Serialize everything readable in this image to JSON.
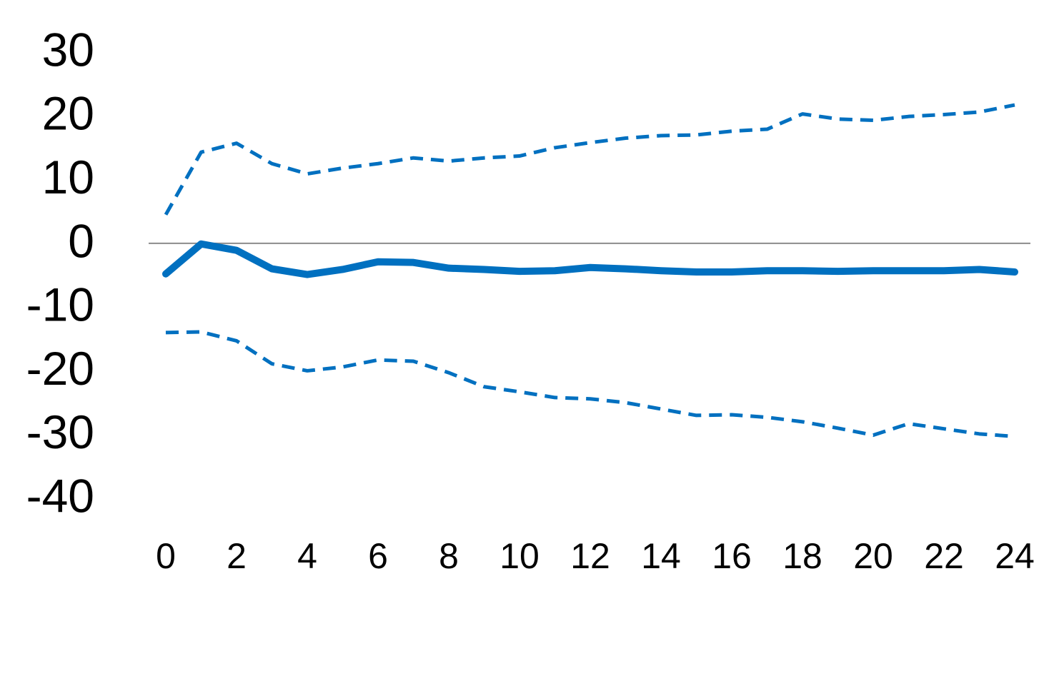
{
  "chart_data": {
    "type": "line",
    "x": [
      0,
      1,
      2,
      3,
      4,
      5,
      6,
      7,
      8,
      9,
      10,
      11,
      12,
      13,
      14,
      15,
      16,
      17,
      18,
      19,
      20,
      21,
      22,
      23,
      24
    ],
    "xlim": [
      0,
      24
    ],
    "xticks": [
      0,
      2,
      4,
      6,
      8,
      10,
      12,
      14,
      16,
      18,
      20,
      22,
      24
    ],
    "ylim": [
      -40,
      30
    ],
    "yticks": [
      30,
      20,
      10,
      0,
      -10,
      -20,
      -30,
      -40
    ],
    "zero_line": true,
    "series": [
      {
        "color": "#0070c0",
        "style": "dashed",
        "values": [
          4.5,
          14.3,
          15.7,
          12.5,
          10.9,
          11.8,
          12.5,
          13.4,
          12.9,
          13.4,
          13.7,
          15.0,
          15.8,
          16.5,
          16.9,
          17.0,
          17.6,
          17.9,
          20.3,
          19.5,
          19.3,
          19.9,
          20.2,
          20.6,
          21.7
        ]
      },
      {
        "color": "#0070c0",
        "style": "solid",
        "values": [
          -4.8,
          -0.1,
          -1.1,
          -4.0,
          -4.9,
          -4.1,
          -2.9,
          -3.0,
          -3.9,
          -4.1,
          -4.4,
          -4.3,
          -3.8,
          -4.0,
          -4.3,
          -4.5,
          -4.5,
          -4.3,
          -4.3,
          -4.4,
          -4.3,
          -4.3,
          -4.3,
          -4.1,
          -4.5
        ]
      },
      {
        "color": "#0070c0",
        "style": "dashed",
        "values": [
          -14.0,
          -13.9,
          -15.3,
          -18.9,
          -20.0,
          -19.4,
          -18.3,
          -18.5,
          -20.3,
          -22.5,
          -23.3,
          -24.2,
          -24.4,
          -25.0,
          -26.0,
          -27.0,
          -26.9,
          -27.3,
          -28.0,
          -29.0,
          -30.1,
          -28.3,
          -29.1,
          -29.9,
          -30.3
        ]
      }
    ]
  }
}
